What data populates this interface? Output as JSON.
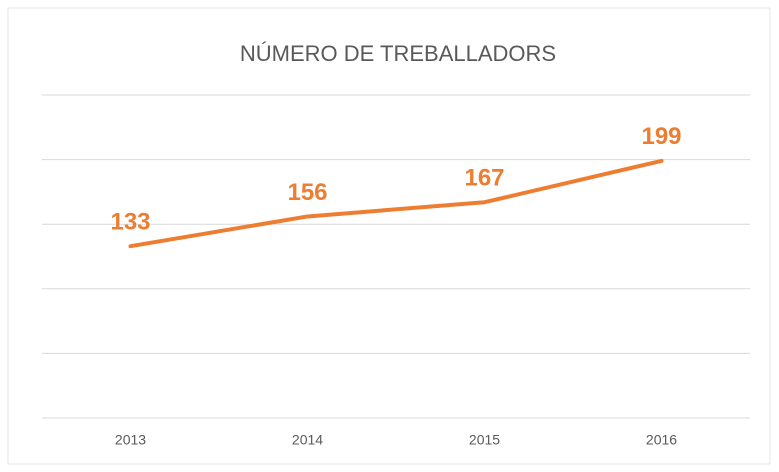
{
  "chart_data": {
    "type": "line",
    "title": "NÚMERO DE TREBALLADORS",
    "categories": [
      "2013",
      "2014",
      "2015",
      "2016"
    ],
    "series": [
      {
        "name": "Treballadors",
        "color": "#ed7d31",
        "values": [
          133,
          156,
          167,
          199
        ]
      }
    ],
    "ylim": [
      0,
      250
    ],
    "yticks": [
      0,
      50,
      100,
      150,
      200,
      250
    ],
    "grid": true
  }
}
